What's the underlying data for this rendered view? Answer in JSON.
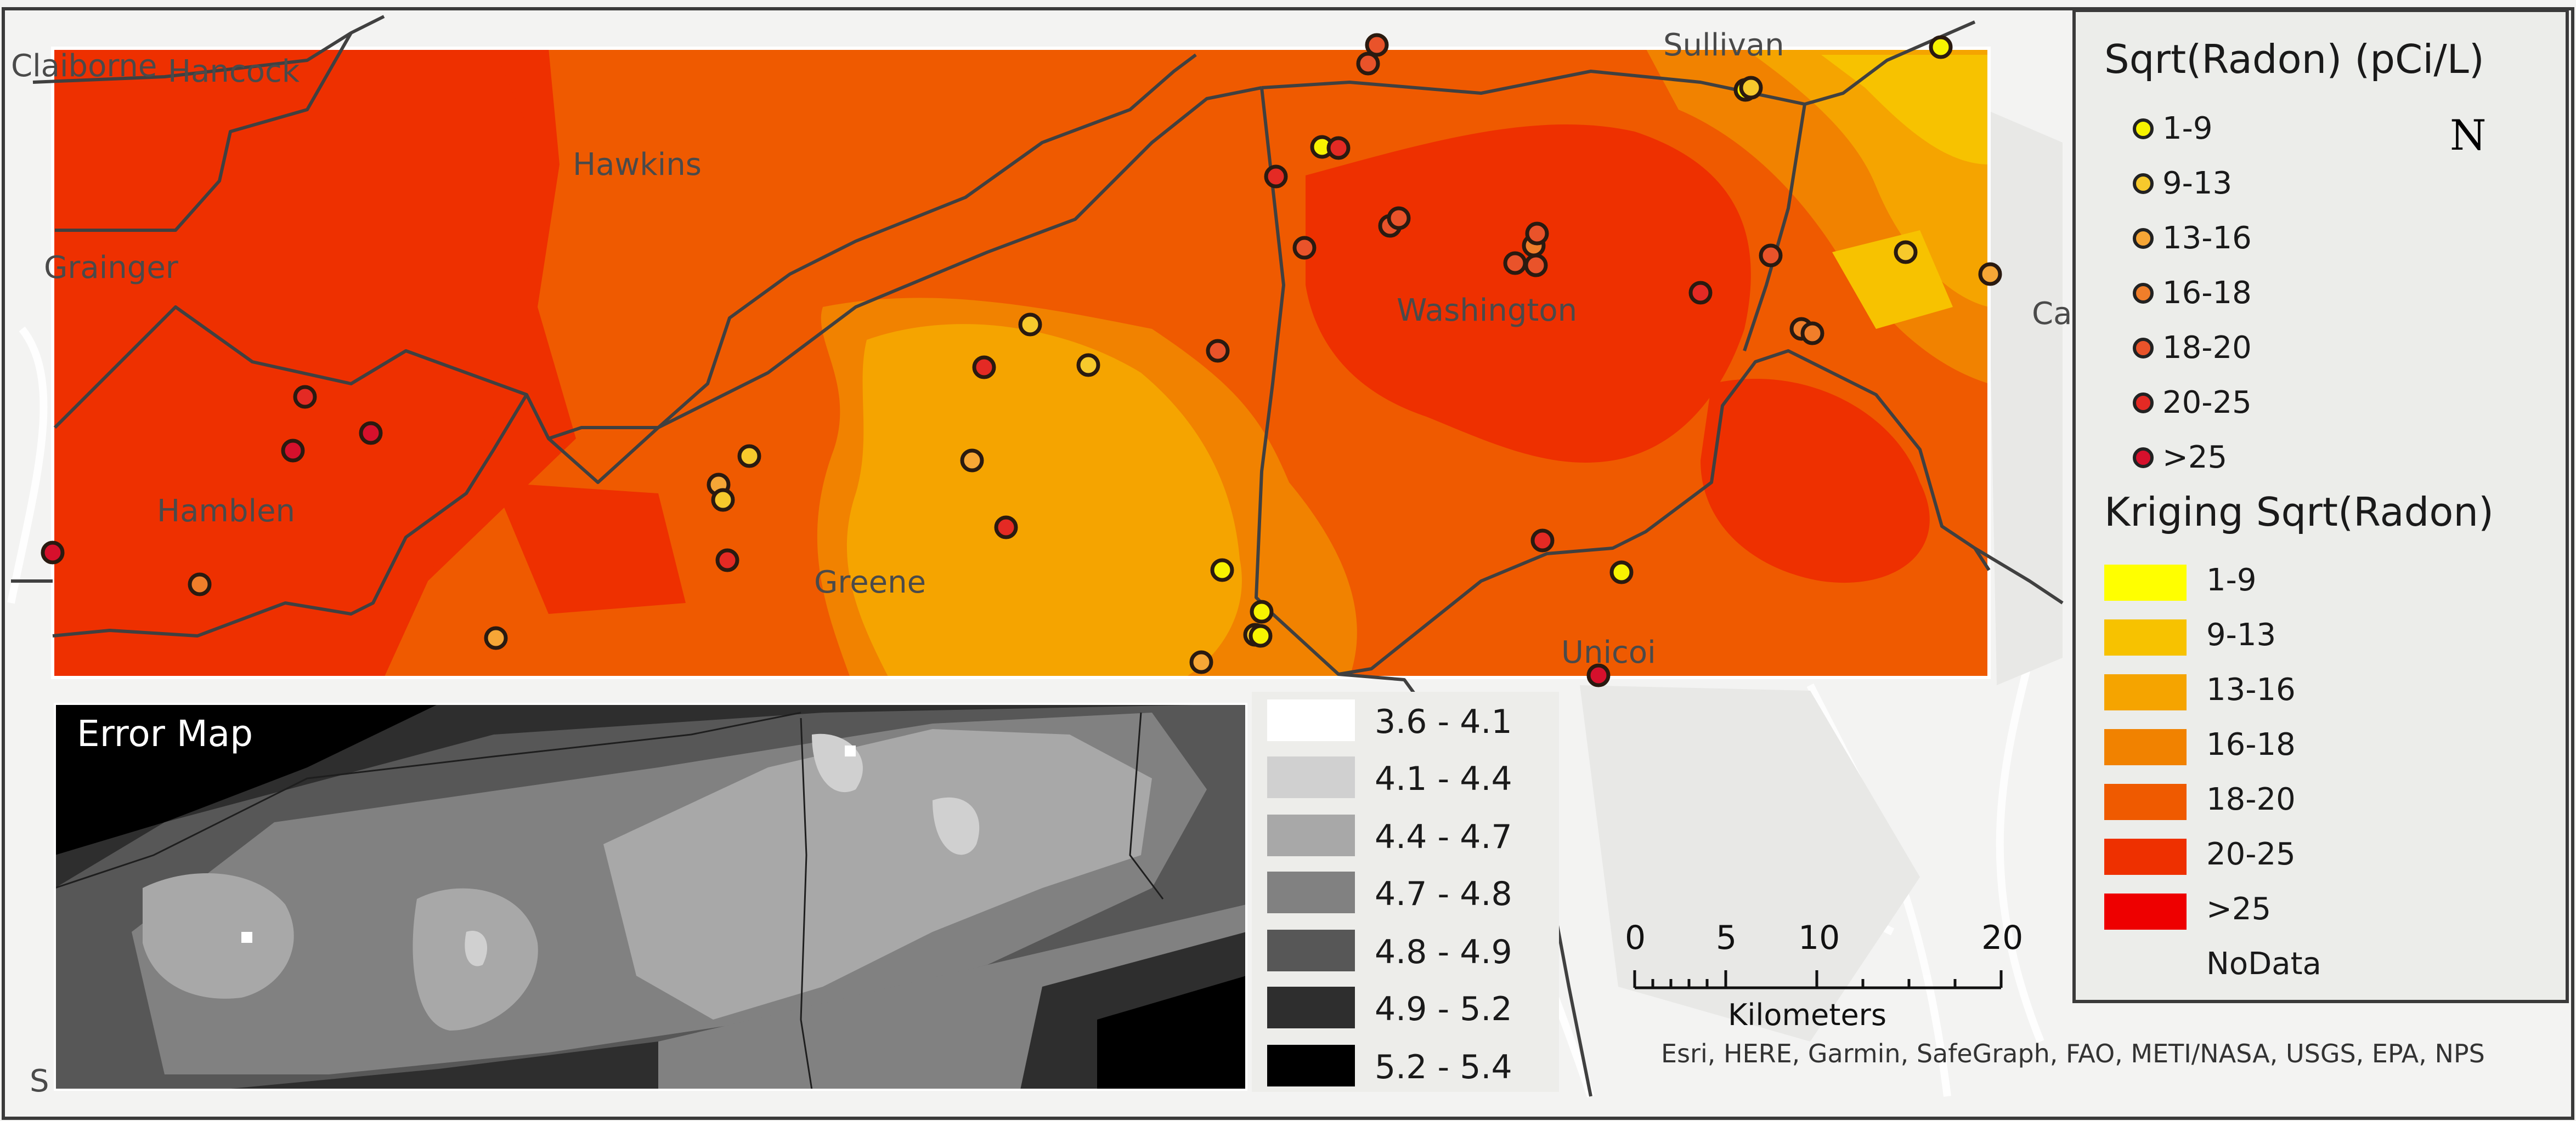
{
  "colors": {
    "basemap": "#f3f3f2",
    "kriging": [
      "#ffff00",
      "#f7c200",
      "#f5a400",
      "#f18200",
      "#ef5a00",
      "#ee3000",
      "#ee0000"
    ],
    "error_map": [
      "#ffffff",
      "#d0d0d0",
      "#a8a8a8",
      "#818181",
      "#575757",
      "#2e2e2e",
      "#000000"
    ],
    "points": [
      "#f7f300",
      "#f7c92c",
      "#f6a636",
      "#f07e2a",
      "#e9532a",
      "#e42a24",
      "#d6102c"
    ]
  },
  "county_labels": [
    "Claiborne",
    "Hancock",
    "Hawkins",
    "Grainger",
    "Hamblen",
    "Greene",
    "Washington",
    "Sullivan",
    "Unicoi",
    "Ca",
    "S"
  ],
  "map_layers": {
    "kriging_surface": "Kriging Sqrt(Radon) surface",
    "sample_points": "Sqrt(Radon) sample points"
  },
  "legend": {
    "points_title": "Sqrt(Radon) (pCi/L)",
    "point_classes": [
      "1-9",
      "9-13",
      "13-16",
      "16-18",
      "18-20",
      "20-25",
      ">25"
    ],
    "kriging_title": "Kriging Sqrt(Radon)",
    "kriging_classes": [
      "1-9",
      "9-13",
      "13-16",
      "16-18",
      "18-20",
      "20-25",
      ">25"
    ],
    "nodata_label": "NoData"
  },
  "north_arrow": {
    "label": "N",
    "icon": "north-arrow-icon"
  },
  "error_map": {
    "title": "Error Map",
    "classes": [
      "3.6 - 4.1",
      "4.1 - 4.4",
      "4.4 - 4.7",
      "4.7 - 4.8",
      "4.8 - 4.9",
      "4.9 - 5.2",
      "5.2 - 5.4"
    ]
  },
  "scale_bar": {
    "ticks": [
      "0",
      "5",
      "10",
      "20"
    ],
    "units": "Kilometers"
  },
  "attribution": "Esri, HERE, Garmin, SafeGraph, FAO, METI/NASA, USGS, EPA, NPS",
  "samples": [
    {
      "cls": 6,
      "lon": 0.0,
      "lat": 0.74
    },
    {
      "cls": 5,
      "lon": 0.11,
      "lat": 0.64
    }
  ]
}
